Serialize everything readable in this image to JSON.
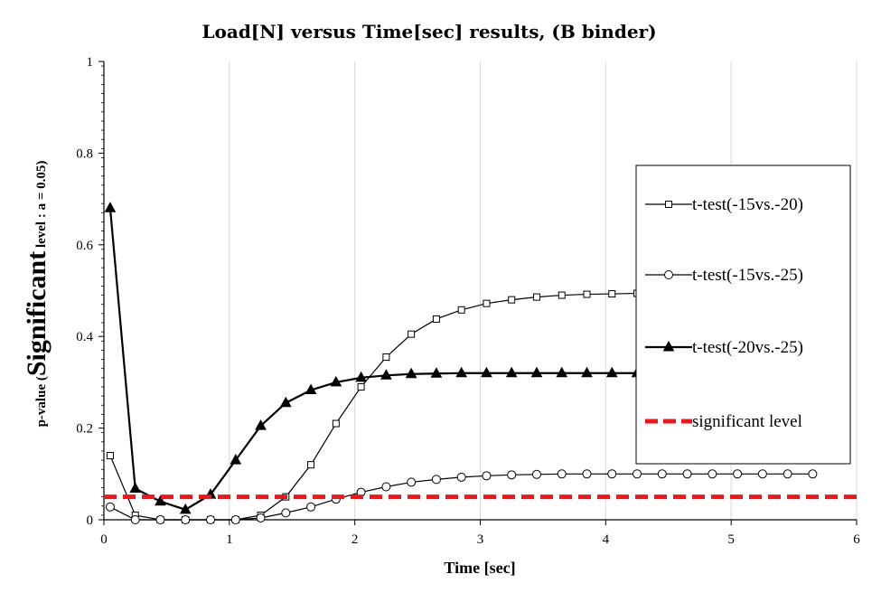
{
  "chart_data": {
    "type": "line",
    "title": "Load[N] versus Time[sec] results, (B binder)",
    "xlabel": "Time [sec]",
    "ylabel_prefix": "p-value (",
    "ylabel_main": "Significant",
    "ylabel_suffix": " level : a = 0.05)",
    "xlim": [
      0,
      6
    ],
    "ylim": [
      0,
      1
    ],
    "x_ticks": [
      "0",
      "1",
      "2",
      "3",
      "4",
      "5",
      "6"
    ],
    "y_ticks": [
      "0",
      "0.2",
      "0.4",
      "0.6",
      "0.8",
      "1"
    ],
    "legend_position": "right",
    "series": [
      {
        "name": "t-test(-15vs.-20)",
        "marker": "square",
        "color": "#000000",
        "x": [
          0.05,
          0.25,
          0.45,
          0.65,
          0.85,
          1.05,
          1.25,
          1.45,
          1.65,
          1.85,
          2.05,
          2.25,
          2.45,
          2.65,
          2.85,
          3.05,
          3.25,
          3.45,
          3.65,
          3.85,
          4.05,
          4.25,
          4.45,
          4.65,
          4.85,
          5.05,
          5.25,
          5.45,
          5.65
        ],
        "y": [
          0.14,
          0.01,
          0.0,
          0.0,
          0.0,
          0.0,
          0.01,
          0.05,
          0.12,
          0.21,
          0.29,
          0.355,
          0.405,
          0.438,
          0.458,
          0.472,
          0.48,
          0.486,
          0.49,
          0.492,
          0.493,
          0.494,
          0.494,
          0.495,
          0.495,
          0.495,
          0.495,
          0.495,
          0.495
        ]
      },
      {
        "name": "t-test(-15vs.-25)",
        "marker": "circle",
        "color": "#000000",
        "x": [
          0.05,
          0.25,
          0.45,
          0.65,
          0.85,
          1.05,
          1.25,
          1.45,
          1.65,
          1.85,
          2.05,
          2.25,
          2.45,
          2.65,
          2.85,
          3.05,
          3.25,
          3.45,
          3.65,
          3.85,
          4.05,
          4.25,
          4.45,
          4.65,
          4.85,
          5.05,
          5.25,
          5.45,
          5.65
        ],
        "y": [
          0.028,
          0.0,
          0.0,
          0.0,
          0.0,
          0.0,
          0.004,
          0.015,
          0.028,
          0.045,
          0.06,
          0.072,
          0.082,
          0.088,
          0.093,
          0.096,
          0.098,
          0.099,
          0.1,
          0.1,
          0.1,
          0.1,
          0.1,
          0.1,
          0.1,
          0.1,
          0.1,
          0.1,
          0.1
        ]
      },
      {
        "name": "t-test(-20vs.-25)",
        "marker": "triangle",
        "color": "#000000",
        "x": [
          0.05,
          0.25,
          0.45,
          0.65,
          0.85,
          1.05,
          1.25,
          1.45,
          1.65,
          1.85,
          2.05,
          2.25,
          2.45,
          2.65,
          2.85,
          3.05,
          3.25,
          3.45,
          3.65,
          3.85,
          4.05,
          4.25,
          4.45,
          4.65,
          4.85,
          5.05,
          5.25,
          5.45,
          5.65
        ],
        "y": [
          0.68,
          0.068,
          0.04,
          0.022,
          0.055,
          0.13,
          0.205,
          0.255,
          0.283,
          0.3,
          0.31,
          0.315,
          0.318,
          0.319,
          0.32,
          0.32,
          0.32,
          0.32,
          0.32,
          0.32,
          0.32,
          0.32,
          0.32,
          0.32,
          0.32,
          0.32,
          0.32,
          0.32,
          0.32
        ]
      },
      {
        "name": "significant level",
        "marker": "none",
        "color": "#e8191b",
        "dashed": true,
        "x": [
          0,
          6
        ],
        "y": [
          0.05,
          0.05
        ]
      }
    ]
  }
}
